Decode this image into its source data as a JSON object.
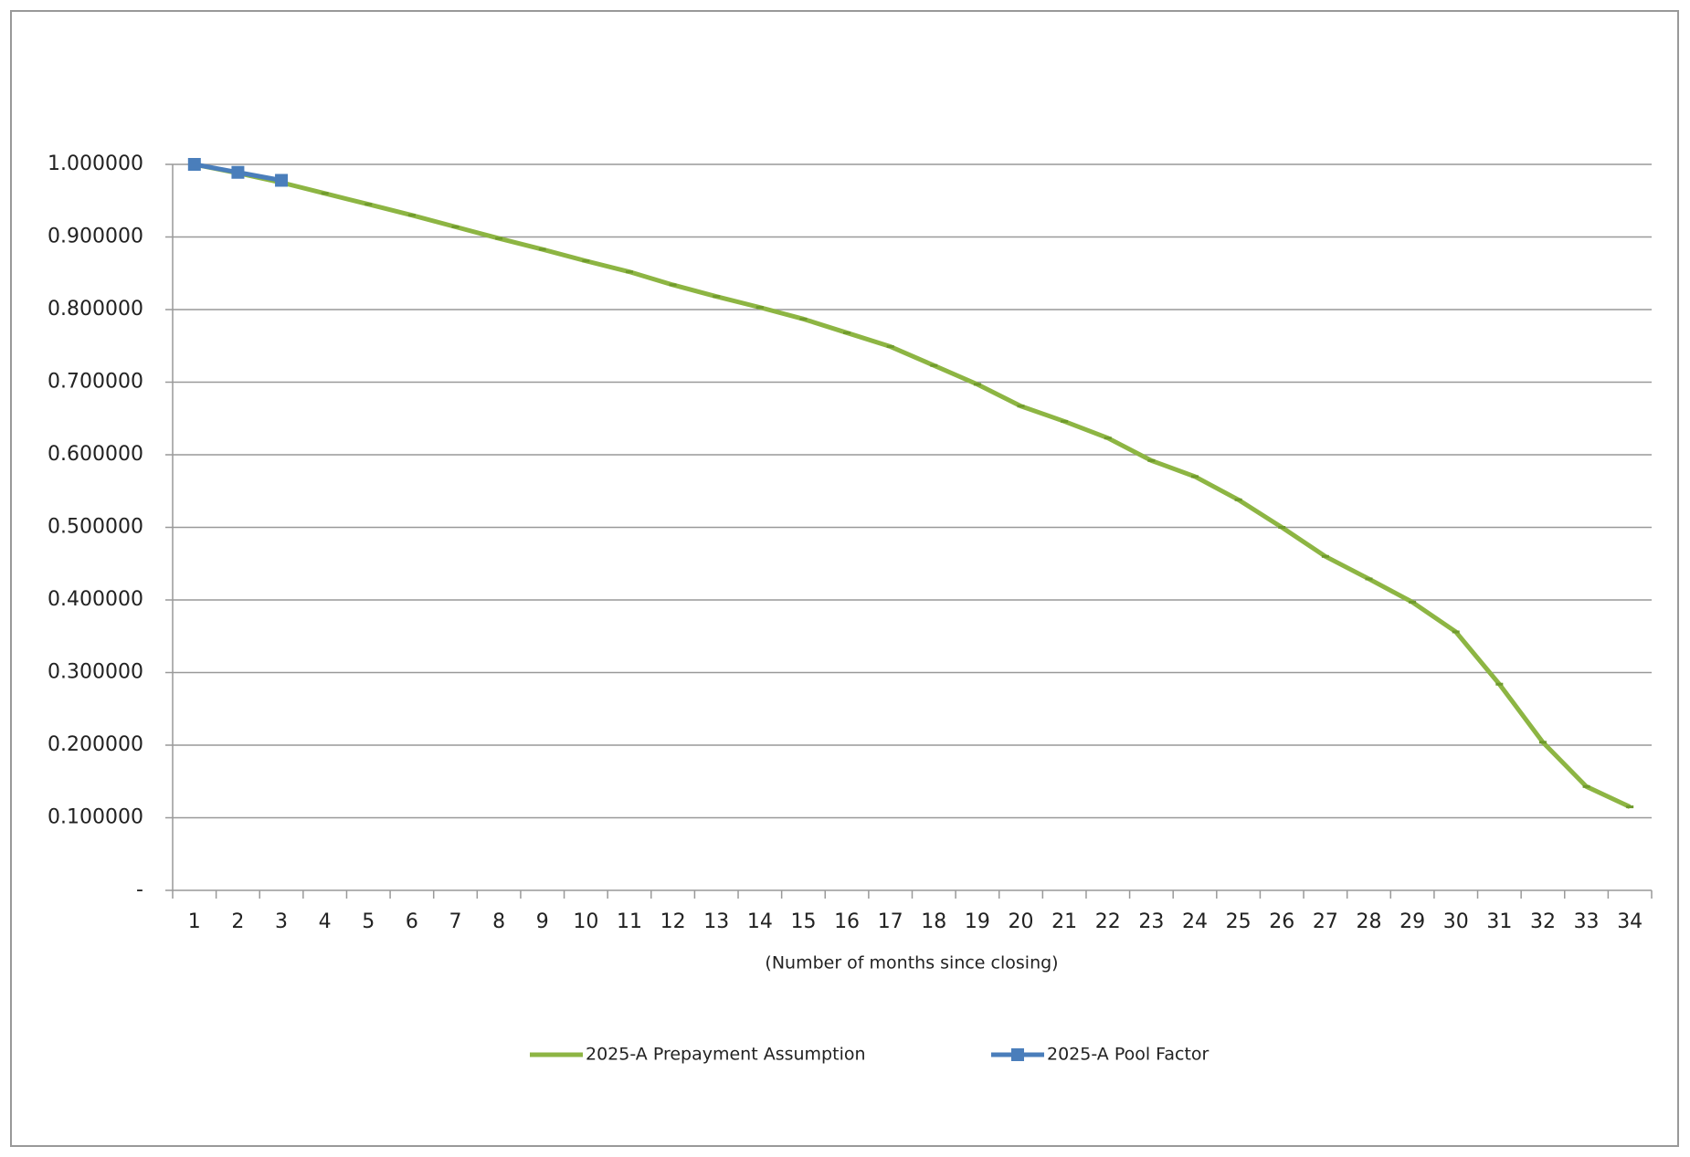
{
  "chart_data": {
    "type": "line",
    "x_label": "(Number of months since closing)",
    "categories": [
      1,
      2,
      3,
      4,
      5,
      6,
      7,
      8,
      9,
      10,
      11,
      12,
      13,
      14,
      15,
      16,
      17,
      18,
      19,
      20,
      21,
      22,
      23,
      24,
      25,
      26,
      27,
      28,
      29,
      30,
      31,
      32,
      33,
      34
    ],
    "series": [
      {
        "name": "2025-A Prepayment Assumption",
        "color": "#8db543",
        "marker": "dash",
        "values": [
          1.0,
          0.988,
          0.975,
          0.96,
          0.945,
          0.93,
          0.914,
          0.898,
          0.883,
          0.867,
          0.852,
          0.834,
          0.818,
          0.803,
          0.787,
          0.768,
          0.749,
          0.723,
          0.697,
          0.667,
          0.646,
          0.623,
          0.592,
          0.57,
          0.538,
          0.5,
          0.46,
          0.429,
          0.397,
          0.356,
          0.284,
          0.204,
          0.143,
          0.115
        ]
      },
      {
        "name": "2025-A Pool Factor",
        "color": "#4a7ebb",
        "marker": "square",
        "values": [
          1.0,
          0.989,
          0.978,
          null,
          null,
          null,
          null,
          null,
          null,
          null,
          null,
          null,
          null,
          null,
          null,
          null,
          null,
          null,
          null,
          null,
          null,
          null,
          null,
          null,
          null,
          null,
          null,
          null,
          null,
          null,
          null,
          null,
          null,
          null
        ]
      }
    ],
    "ylim": [
      0,
      1
    ],
    "yticks": [
      {
        "value": 0,
        "label": "-"
      },
      {
        "value": 0.1,
        "label": "0.100000"
      },
      {
        "value": 0.2,
        "label": "0.200000"
      },
      {
        "value": 0.3,
        "label": "0.300000"
      },
      {
        "value": 0.4,
        "label": "0.400000"
      },
      {
        "value": 0.5,
        "label": "0.500000"
      },
      {
        "value": 0.6,
        "label": "0.600000"
      },
      {
        "value": 0.7,
        "label": "0.700000"
      },
      {
        "value": 0.8,
        "label": "0.800000"
      },
      {
        "value": 0.9,
        "label": "0.900000"
      },
      {
        "value": 1,
        "label": "1.000000"
      }
    ],
    "grid": true,
    "legend": "bottom"
  }
}
